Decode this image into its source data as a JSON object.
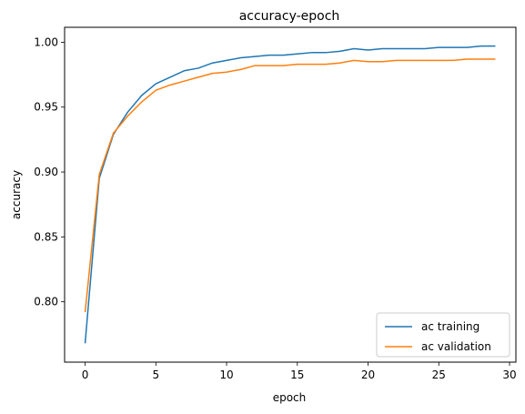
{
  "chart_data": {
    "type": "line",
    "title": "accuracy-epoch",
    "xlabel": "epoch",
    "ylabel": "accuracy",
    "xlim": [
      -1.45,
      30.45
    ],
    "ylim": [
      0.7535,
      1.0115
    ],
    "xticks": [
      0,
      5,
      10,
      15,
      20,
      25,
      30
    ],
    "yticks": [
      0.8,
      0.85,
      0.9,
      0.95,
      1.0
    ],
    "ytick_labels": [
      "0.80",
      "0.85",
      "0.90",
      "0.95",
      "1.00"
    ],
    "grid": false,
    "legend_position": "lower-right",
    "x": [
      0,
      1,
      2,
      3,
      4,
      5,
      6,
      7,
      8,
      9,
      10,
      11,
      12,
      13,
      14,
      15,
      16,
      17,
      18,
      19,
      20,
      21,
      22,
      23,
      24,
      25,
      26,
      27,
      28,
      29
    ],
    "series": [
      {
        "name": "ac training",
        "color": "#1f77b4",
        "values": [
          0.768,
          0.895,
          0.929,
          0.946,
          0.959,
          0.968,
          0.973,
          0.978,
          0.98,
          0.984,
          0.986,
          0.988,
          0.989,
          0.99,
          0.99,
          0.991,
          0.992,
          0.992,
          0.993,
          0.995,
          0.994,
          0.995,
          0.995,
          0.995,
          0.995,
          0.996,
          0.996,
          0.996,
          0.997,
          0.997
        ]
      },
      {
        "name": "ac validation",
        "color": "#ff7f0e",
        "values": [
          0.792,
          0.898,
          0.93,
          0.943,
          0.954,
          0.963,
          0.967,
          0.97,
          0.973,
          0.976,
          0.977,
          0.979,
          0.982,
          0.982,
          0.982,
          0.983,
          0.983,
          0.983,
          0.984,
          0.986,
          0.985,
          0.985,
          0.986,
          0.986,
          0.986,
          0.986,
          0.986,
          0.987,
          0.987,
          0.987
        ]
      }
    ]
  }
}
